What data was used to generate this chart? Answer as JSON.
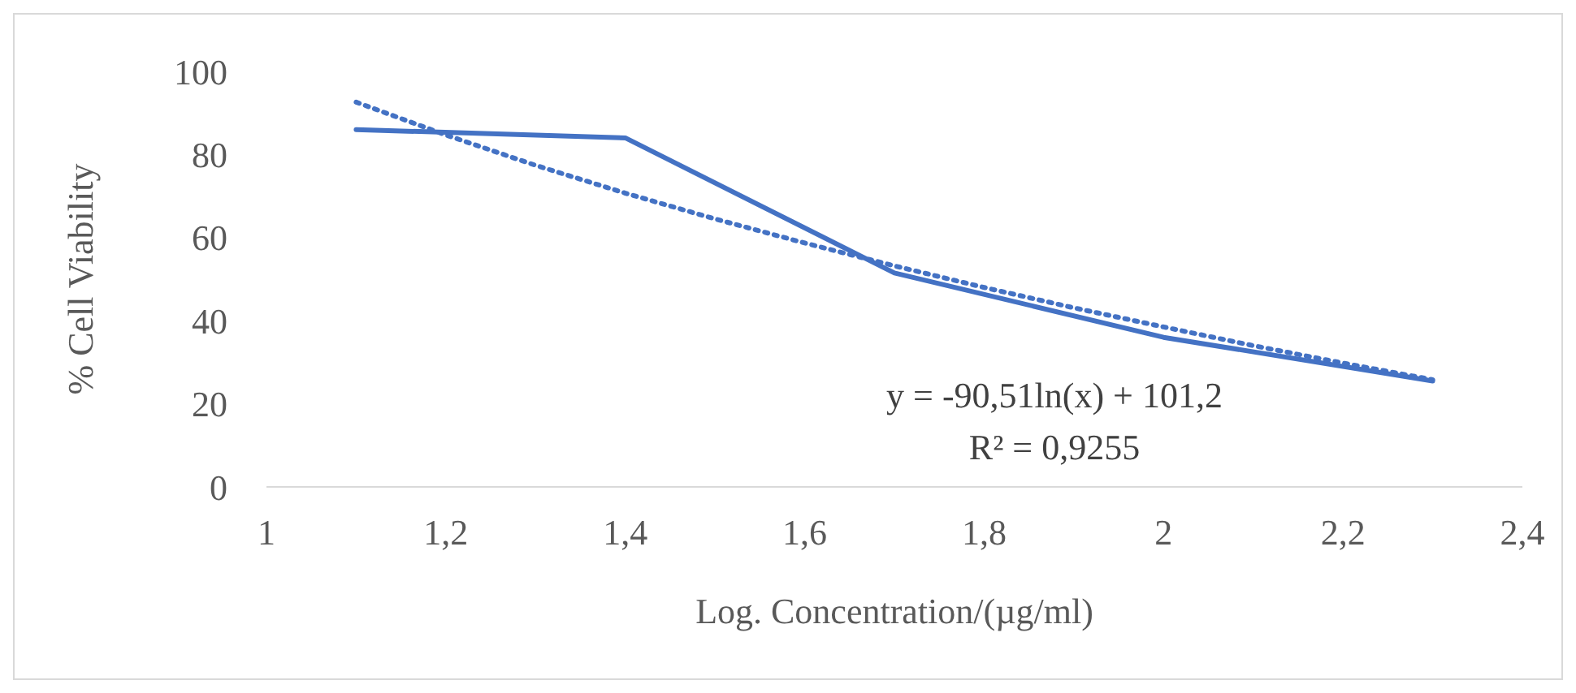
{
  "chart_data": {
    "type": "line",
    "xlabel": "Log. Concentration/(µg/ml)",
    "ylabel": "% Cell Viability",
    "x": [
      1.1,
      1.4,
      1.7,
      2.0,
      2.3
    ],
    "series": [
      {
        "color": "#4472c4",
        "values": [
          86,
          84,
          51.5,
          36,
          25.5
        ],
        "line_style": "solid"
      },
      {
        "type": "line",
        "color": "#4472c4",
        "line_style": "dotted",
        "x": [
          1.1,
          1.2,
          1.3,
          1.4,
          1.5,
          1.6,
          1.7,
          1.8,
          1.9,
          2.0,
          2.1,
          2.2,
          2.3
        ],
        "values": [
          92.6,
          84.7,
          77.4,
          70.7,
          64.5,
          58.7,
          53.2,
          48,
          43.1,
          38.5,
          34,
          29.8,
          25.8
        ]
      }
    ],
    "xlim": [
      1,
      2.4
    ],
    "xticks": [
      1,
      {
        "value": 1.2,
        "label": "1,2"
      },
      {
        "value": 1.4,
        "label": "1,4"
      },
      {
        "value": 1.6,
        "label": "1,6"
      },
      {
        "value": 1.8,
        "label": "1,8"
      },
      2,
      {
        "value": 2.2,
        "label": "2,2"
      },
      {
        "value": 2.4,
        "label": "2,4"
      }
    ],
    "ylim": [
      0,
      100
    ],
    "yticks": [
      0,
      20,
      40,
      60,
      80,
      100
    ],
    "grid": false,
    "marker": "none",
    "annotations": [
      "y = -90,51ln(x) + 101,2",
      "R² = 0,9255"
    ]
  }
}
